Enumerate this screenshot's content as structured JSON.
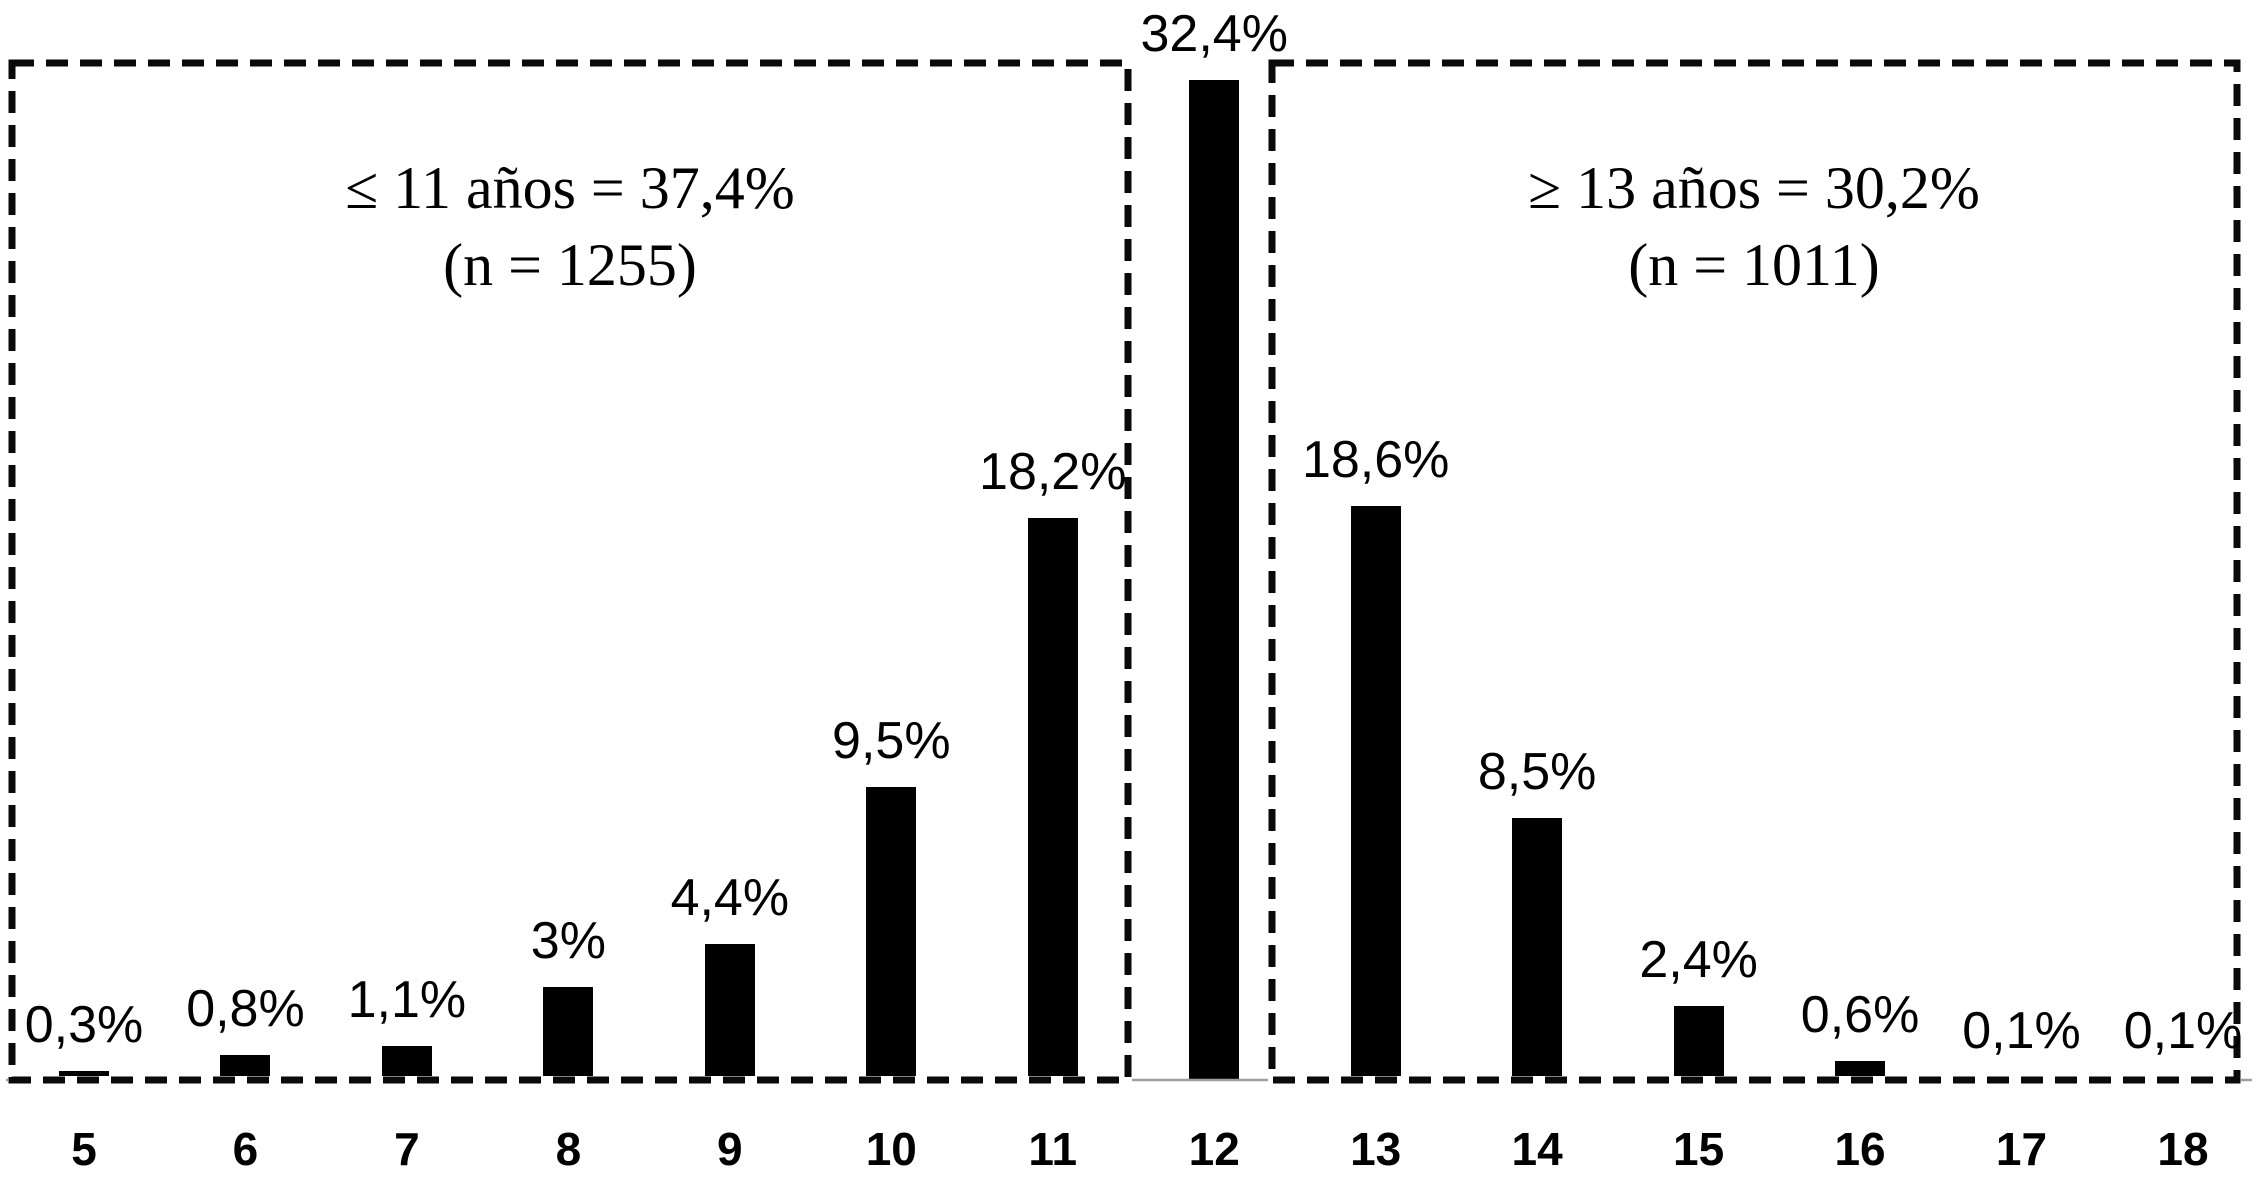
{
  "chart_data": {
    "type": "bar",
    "title": "",
    "xlabel": "",
    "ylabel": "",
    "ylim": [
      0,
      34
    ],
    "grid": false,
    "legend": null,
    "categories": [
      "5",
      "6",
      "7",
      "8",
      "9",
      "10",
      "11",
      "12",
      "13",
      "14",
      "15",
      "16",
      "17",
      "18"
    ],
    "values": [
      0.3,
      0.8,
      1.1,
      3,
      4.4,
      9.5,
      18.2,
      32.4,
      18.6,
      8.5,
      2.4,
      0.6,
      0.1,
      0.1
    ],
    "value_labels": [
      "0,3%",
      "0,8%",
      "1,1%",
      "3%",
      "4,4%",
      "9,5%",
      "18,2%",
      "32,4%",
      "18,6%",
      "8,5%",
      "2,4%",
      "0,6%",
      "0,1%",
      "0,1%"
    ],
    "annotations": [
      {
        "side": "left",
        "line1": "≤ 11 años = 37,4%",
        "line2": "(n = 1255)",
        "covers_categories": [
          "5",
          "11"
        ]
      },
      {
        "side": "right",
        "line1": "≥ 13 años = 30,2%",
        "line2": "(n = 1011)",
        "covers_categories": [
          "13",
          "18"
        ]
      }
    ],
    "colors": {
      "bar": "#000000",
      "box_border": "#0a0a0a",
      "baseline": "#9e9e9e",
      "text": "#000000"
    }
  }
}
